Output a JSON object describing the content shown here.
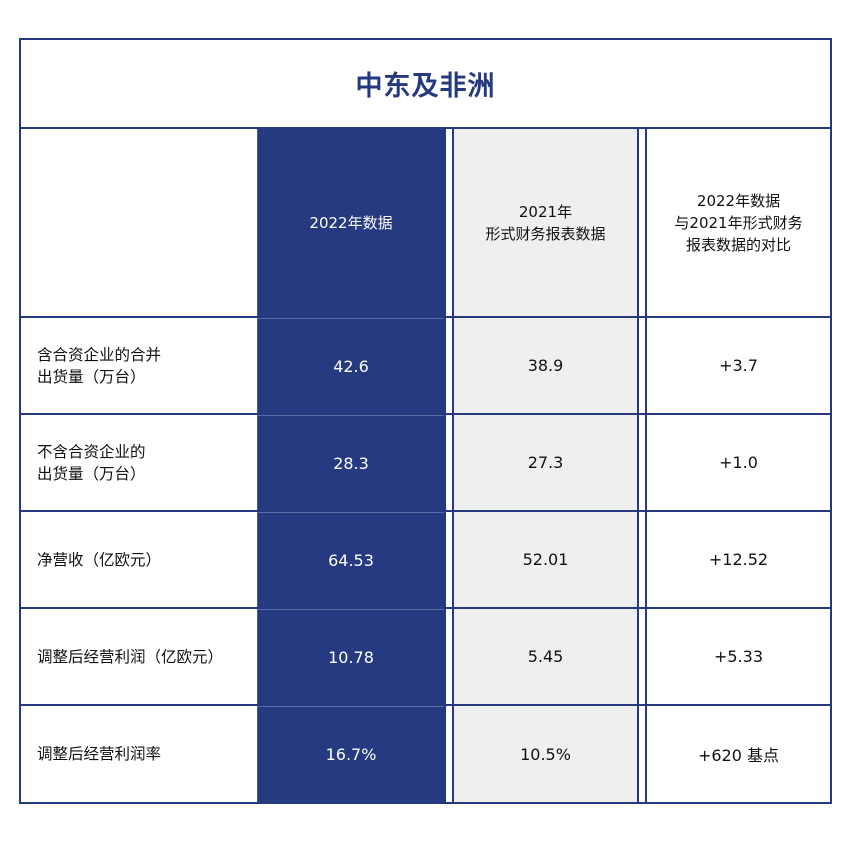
{
  "title": "中东及非洲",
  "headers": {
    "col_2022": [
      "2022年数据"
    ],
    "col_2021": [
      "2021年",
      "形式财务报表数据"
    ],
    "col_diff": [
      "2022年数据",
      "与2021年形式财务",
      "报表数据的对比"
    ]
  },
  "rows": [
    {
      "label": [
        "含合资企业的合并",
        "出货量（万台）"
      ],
      "v2022": "42.6",
      "v2021": "38.9",
      "diff": "+3.7"
    },
    {
      "label": [
        "不含合资企业的",
        "出货量（万台）"
      ],
      "v2022": "28.3",
      "v2021": "27.3",
      "diff": "+1.0"
    },
    {
      "label": [
        "净营收（亿欧元）"
      ],
      "v2022": "64.53",
      "v2021": "52.01",
      "diff": "+12.52"
    },
    {
      "label": [
        "调整后经营利润（亿欧元）"
      ],
      "v2022": "10.78",
      "v2021": "5.45",
      "diff": "+5.33"
    },
    {
      "label": [
        "调整后经营利润率"
      ],
      "v2022": "16.7%",
      "v2021": "10.5%",
      "diff": "+620 基点"
    }
  ],
  "colors": {
    "navy": "#253a80",
    "grey": "#efefef",
    "border": "#25397e"
  }
}
